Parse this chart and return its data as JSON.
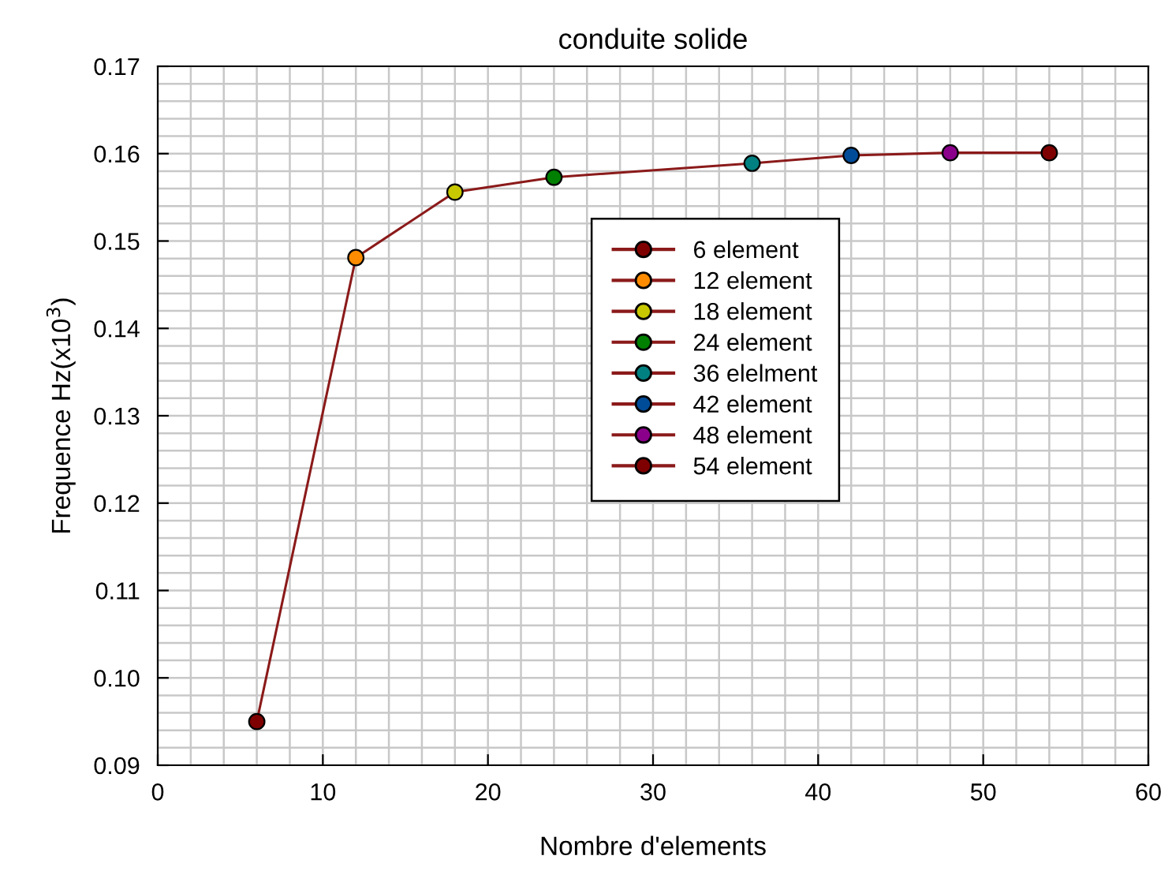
{
  "chart_data": {
    "type": "line",
    "title": "conduite solide",
    "xlabel": "Nombre d'elements",
    "ylabel": "Frequence Hz(x10$^{3}$)",
    "xlim": [
      0,
      60
    ],
    "xticks": [
      0,
      10,
      20,
      30,
      40,
      50,
      60
    ],
    "ylim": [
      0.09,
      0.17
    ],
    "yticks": [
      {
        "value": 0.09,
        "label": "0.09"
      },
      {
        "value": 0.1,
        "label": "0.10"
      },
      {
        "value": 0.11,
        "label": "0.11"
      },
      {
        "value": 0.12,
        "label": "0.12"
      },
      {
        "value": 0.13,
        "label": "0.13"
      },
      {
        "value": 0.14,
        "label": "0.14"
      },
      {
        "value": 0.15,
        "label": "0.15"
      },
      {
        "value": 0.16,
        "label": "0.16"
      },
      {
        "value": 0.17,
        "label": "0.17"
      }
    ],
    "grid": true,
    "legend": "right",
    "marker": "circle",
    "line_style": "solid",
    "series": [
      {
        "type": "line",
        "marker": "none",
        "color": "#8b1a1a",
        "x": [
          6,
          12,
          18,
          24,
          36,
          42,
          48,
          54
        ],
        "values": [
          0.095,
          0.1481,
          0.1556,
          0.1573,
          0.1589,
          0.1598,
          0.1601,
          0.1601
        ]
      },
      {
        "type": "scatter",
        "name": "6 element",
        "color": "#7f0000",
        "x": [
          6
        ],
        "values": [
          0.095
        ]
      },
      {
        "type": "scatter",
        "name": "12 element",
        "color": "#ff8c00",
        "x": [
          12
        ],
        "values": [
          0.1481
        ]
      },
      {
        "type": "scatter",
        "name": "18 element",
        "color": "#c8c800",
        "x": [
          18
        ],
        "values": [
          0.1556
        ]
      },
      {
        "type": "scatter",
        "name": "24 element",
        "color": "#008000",
        "x": [
          24
        ],
        "values": [
          0.1573
        ]
      },
      {
        "type": "scatter",
        "name": "36 elelment",
        "color": "#008080",
        "x": [
          36
        ],
        "values": [
          0.1589
        ]
      },
      {
        "type": "scatter",
        "name": "42 element",
        "color": "#004c99",
        "x": [
          42
        ],
        "values": [
          0.1598
        ]
      },
      {
        "type": "scatter",
        "name": "48 element",
        "color": "#8b008b",
        "x": [
          48
        ],
        "values": [
          0.1601
        ]
      },
      {
        "type": "scatter",
        "name": "54 element",
        "color": "#7f0000",
        "x": [
          54
        ],
        "values": [
          0.1601
        ]
      }
    ]
  }
}
